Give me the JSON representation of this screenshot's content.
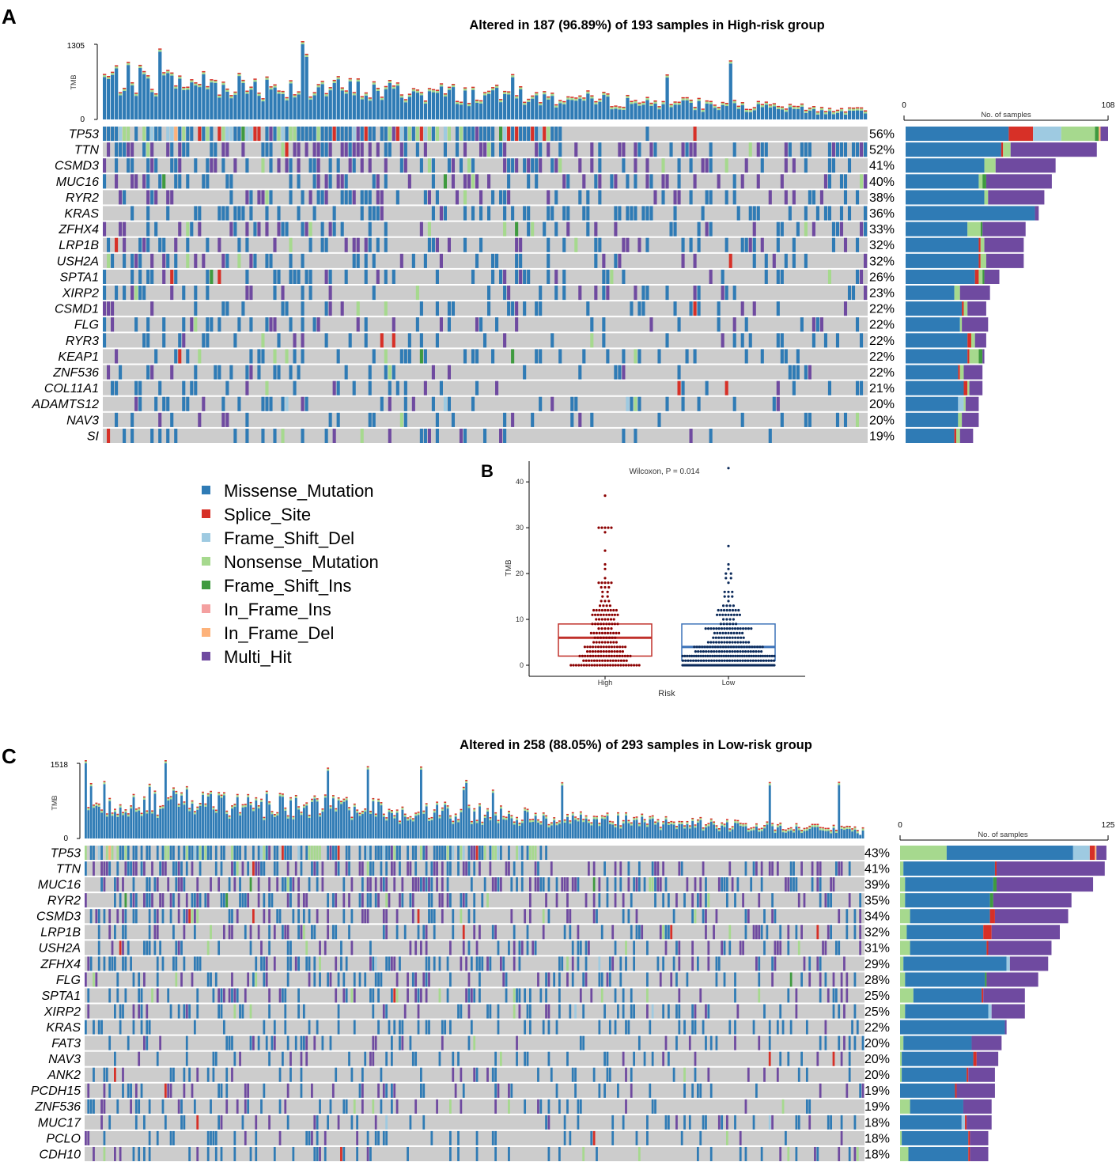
{
  "palette": {
    "Missense_Mutation": "#2f7bb5",
    "Splice_Site": "#d73027",
    "Frame_Shift_Del": "#9ecae1",
    "Nonsense_Mutation": "#a6d98e",
    "Frame_Shift_Ins": "#3f9a3f",
    "In_Frame_Ins": "#f4a0a0",
    "In_Frame_Del": "#fdb27a",
    "Multi_Hit": "#6f4aa0",
    "none": "#cccccc"
  },
  "legend": {
    "items": [
      {
        "label": "Missense_Mutation",
        "key": "Missense_Mutation"
      },
      {
        "label": "Splice_Site",
        "key": "Splice_Site"
      },
      {
        "label": "Frame_Shift_Del",
        "key": "Frame_Shift_Del"
      },
      {
        "label": "Nonsense_Mutation",
        "key": "Nonsense_Mutation"
      },
      {
        "label": "Frame_Shift_Ins",
        "key": "Frame_Shift_Ins"
      },
      {
        "label": "In_Frame_Ins",
        "key": "In_Frame_Ins"
      },
      {
        "label": "In_Frame_Del",
        "key": "In_Frame_Del"
      },
      {
        "label": "Multi_Hit",
        "key": "Multi_Hit"
      }
    ]
  },
  "chart_data": [
    {
      "type": "oncoplot",
      "panel": "A",
      "title": "Altered in 187 (96.89%) of 193 samples in High-risk group",
      "n_samples": 193,
      "tmb_axis": {
        "label": "TMB",
        "max": 1305,
        "min": 0
      },
      "bar_axis": {
        "label": "No. of samples",
        "min": 0,
        "max": 108
      },
      "genes": [
        {
          "name": "TP53",
          "pct": "56%",
          "counts": {
            "Missense_Mutation": 55,
            "Splice_Site": 13,
            "Frame_Shift_Del": 15,
            "Nonsense_Mutation": 18,
            "Frame_Shift_Ins": 2,
            "In_Frame_Del": 1,
            "Multi_Hit": 4
          }
        },
        {
          "name": "TTN",
          "pct": "52%",
          "counts": {
            "Missense_Mutation": 51,
            "Splice_Site": 1,
            "Nonsense_Mutation": 4,
            "Multi_Hit": 46
          }
        },
        {
          "name": "CSMD3",
          "pct": "41%",
          "counts": {
            "Missense_Mutation": 42,
            "Nonsense_Mutation": 6,
            "Multi_Hit": 32
          }
        },
        {
          "name": "MUC16",
          "pct": "40%",
          "counts": {
            "Missense_Mutation": 39,
            "Nonsense_Mutation": 2,
            "Frame_Shift_Ins": 2,
            "Multi_Hit": 35
          }
        },
        {
          "name": "RYR2",
          "pct": "38%",
          "counts": {
            "Missense_Mutation": 42,
            "Nonsense_Mutation": 2,
            "Multi_Hit": 30
          }
        },
        {
          "name": "KRAS",
          "pct": "36%",
          "counts": {
            "Missense_Mutation": 69,
            "Multi_Hit": 2
          }
        },
        {
          "name": "ZFHX4",
          "pct": "33%",
          "counts": {
            "Missense_Mutation": 33,
            "Nonsense_Mutation": 7,
            "Frame_Shift_Ins": 1,
            "Multi_Hit": 23
          }
        },
        {
          "name": "LRP1B",
          "pct": "32%",
          "counts": {
            "Missense_Mutation": 39,
            "Splice_Site": 1,
            "Nonsense_Mutation": 2,
            "Multi_Hit": 21
          }
        },
        {
          "name": "USH2A",
          "pct": "32%",
          "counts": {
            "Missense_Mutation": 39,
            "Splice_Site": 1,
            "Nonsense_Mutation": 3,
            "Multi_Hit": 20
          }
        },
        {
          "name": "SPTA1",
          "pct": "26%",
          "counts": {
            "Missense_Mutation": 37,
            "Splice_Site": 2,
            "Nonsense_Mutation": 2,
            "Frame_Shift_Ins": 1,
            "Multi_Hit": 8
          }
        },
        {
          "name": "XIRP2",
          "pct": "23%",
          "counts": {
            "Missense_Mutation": 26,
            "Nonsense_Mutation": 3,
            "Multi_Hit": 16
          }
        },
        {
          "name": "CSMD1",
          "pct": "22%",
          "counts": {
            "Missense_Mutation": 30,
            "Splice_Site": 1,
            "Nonsense_Mutation": 2,
            "Multi_Hit": 10
          }
        },
        {
          "name": "FLG",
          "pct": "22%",
          "counts": {
            "Missense_Mutation": 29,
            "Nonsense_Mutation": 1,
            "Multi_Hit": 14
          }
        },
        {
          "name": "RYR3",
          "pct": "22%",
          "counts": {
            "Missense_Mutation": 33,
            "Splice_Site": 2,
            "Nonsense_Mutation": 2,
            "Multi_Hit": 6
          }
        },
        {
          "name": "KEAP1",
          "pct": "22%",
          "counts": {
            "Missense_Mutation": 33,
            "Splice_Site": 1,
            "Nonsense_Mutation": 5,
            "Frame_Shift_Ins": 2,
            "Multi_Hit": 1
          }
        },
        {
          "name": "ZNF536",
          "pct": "22%",
          "counts": {
            "Missense_Mutation": 28,
            "Splice_Site": 1,
            "Nonsense_Mutation": 2,
            "Multi_Hit": 10
          }
        },
        {
          "name": "COL11A1",
          "pct": "21%",
          "counts": {
            "Missense_Mutation": 31,
            "Splice_Site": 2,
            "Nonsense_Mutation": 1,
            "Multi_Hit": 7
          }
        },
        {
          "name": "ADAMTS12",
          "pct": "20%",
          "counts": {
            "Missense_Mutation": 28,
            "Frame_Shift_Del": 3,
            "Nonsense_Mutation": 1,
            "Multi_Hit": 7
          }
        },
        {
          "name": "NAV3",
          "pct": "20%",
          "counts": {
            "Missense_Mutation": 28,
            "Nonsense_Mutation": 2,
            "Multi_Hit": 9
          }
        },
        {
          "name": "SI",
          "pct": "19%",
          "counts": {
            "Missense_Mutation": 26,
            "Splice_Site": 1,
            "Nonsense_Mutation": 2,
            "Multi_Hit": 7
          }
        }
      ]
    },
    {
      "type": "box",
      "panel": "B",
      "title": "Wilcoxon, P = 0.014",
      "xlabel": "Risk",
      "ylabel": "TMB",
      "categories": [
        "High",
        "Low"
      ],
      "ylim": [
        0,
        44
      ],
      "yticks": [
        0,
        10,
        20,
        30,
        40
      ],
      "series": [
        {
          "name": "High",
          "color": "#c0302a",
          "point_color": "#8b0000",
          "q1": 2,
          "median": 6,
          "q3": 9,
          "max_point": 37,
          "n": 193
        },
        {
          "name": "Low",
          "color": "#3c72b8",
          "point_color": "#0b2a5a",
          "q1": 1,
          "median": 4,
          "q3": 9,
          "max_point": 43,
          "n": 293
        }
      ]
    },
    {
      "type": "oncoplot",
      "panel": "C",
      "title": "Altered in 258 (88.05%) of 293 samples in Low-risk group",
      "n_samples": 293,
      "tmb_axis": {
        "label": "TMB",
        "max": 1518,
        "min": 0
      },
      "bar_axis": {
        "label": "No. of samples",
        "min": 0,
        "max": 125
      },
      "genes": [
        {
          "name": "TP53",
          "pct": "43%",
          "counts": {
            "Nonsense_Mutation": 28,
            "Missense_Mutation": 76,
            "Frame_Shift_Del": 10,
            "Splice_Site": 3,
            "In_Frame_Del": 1,
            "Multi_Hit": 6
          }
        },
        {
          "name": "TTN",
          "pct": "41%",
          "counts": {
            "Nonsense_Mutation": 2,
            "Missense_Mutation": 55,
            "Splice_Site": 1,
            "Multi_Hit": 65
          }
        },
        {
          "name": "MUC16",
          "pct": "39%",
          "counts": {
            "Nonsense_Mutation": 3,
            "Missense_Mutation": 53,
            "Frame_Shift_Ins": 2,
            "Multi_Hit": 58
          }
        },
        {
          "name": "RYR2",
          "pct": "35%",
          "counts": {
            "Nonsense_Mutation": 3,
            "Missense_Mutation": 51,
            "Frame_Shift_Ins": 2,
            "Multi_Hit": 47
          }
        },
        {
          "name": "CSMD3",
          "pct": "34%",
          "counts": {
            "Nonsense_Mutation": 6,
            "Missense_Mutation": 48,
            "Splice_Site": 3,
            "Multi_Hit": 44
          }
        },
        {
          "name": "LRP1B",
          "pct": "32%",
          "counts": {
            "Nonsense_Mutation": 4,
            "Missense_Mutation": 46,
            "Splice_Site": 5,
            "Multi_Hit": 41
          }
        },
        {
          "name": "USH2A",
          "pct": "31%",
          "counts": {
            "Nonsense_Mutation": 6,
            "Missense_Mutation": 46,
            "Splice_Site": 1,
            "Multi_Hit": 38
          }
        },
        {
          "name": "ZFHX4",
          "pct": "29%",
          "counts": {
            "Nonsense_Mutation": 2,
            "Missense_Mutation": 62,
            "Frame_Shift_Del": 2,
            "Multi_Hit": 23
          }
        },
        {
          "name": "FLG",
          "pct": "28%",
          "counts": {
            "Nonsense_Mutation": 3,
            "Missense_Mutation": 48,
            "Frame_Shift_Ins": 1,
            "Multi_Hit": 31
          }
        },
        {
          "name": "SPTA1",
          "pct": "25%",
          "counts": {
            "Nonsense_Mutation": 8,
            "Missense_Mutation": 41,
            "Splice_Site": 1,
            "Multi_Hit": 25
          }
        },
        {
          "name": "XIRP2",
          "pct": "25%",
          "counts": {
            "Nonsense_Mutation": 3,
            "Missense_Mutation": 50,
            "Frame_Shift_Del": 2,
            "Multi_Hit": 20
          }
        },
        {
          "name": "KRAS",
          "pct": "22%",
          "counts": {
            "Missense_Mutation": 63,
            "Multi_Hit": 1
          }
        },
        {
          "name": "FAT3",
          "pct": "20%",
          "counts": {
            "Nonsense_Mutation": 2,
            "Missense_Mutation": 41,
            "Multi_Hit": 18
          }
        },
        {
          "name": "NAV3",
          "pct": "20%",
          "counts": {
            "Nonsense_Mutation": 1,
            "Missense_Mutation": 43,
            "Splice_Site": 2,
            "Multi_Hit": 13
          }
        },
        {
          "name": "ANK2",
          "pct": "20%",
          "counts": {
            "Nonsense_Mutation": 1,
            "Missense_Mutation": 39,
            "Splice_Site": 1,
            "Multi_Hit": 16
          }
        },
        {
          "name": "PCDH15",
          "pct": "19%",
          "counts": {
            "Missense_Mutation": 33,
            "Splice_Site": 1,
            "Multi_Hit": 23
          }
        },
        {
          "name": "ZNF536",
          "pct": "19%",
          "counts": {
            "Nonsense_Mutation": 6,
            "Missense_Mutation": 32,
            "Multi_Hit": 17
          }
        },
        {
          "name": "MUC17",
          "pct": "18%",
          "counts": {
            "Missense_Mutation": 37,
            "Frame_Shift_Del": 2,
            "Splice_Site": 1,
            "Multi_Hit": 15
          }
        },
        {
          "name": "PCLO",
          "pct": "18%",
          "counts": {
            "Nonsense_Mutation": 1,
            "Missense_Mutation": 40,
            "Splice_Site": 1,
            "Multi_Hit": 11
          }
        },
        {
          "name": "CDH10",
          "pct": "18%",
          "counts": {
            "Nonsense_Mutation": 5,
            "Missense_Mutation": 36,
            "Splice_Site": 1,
            "Multi_Hit": 11
          }
        }
      ]
    }
  ],
  "panels": {
    "A": "A",
    "B": "B",
    "C": "C"
  }
}
